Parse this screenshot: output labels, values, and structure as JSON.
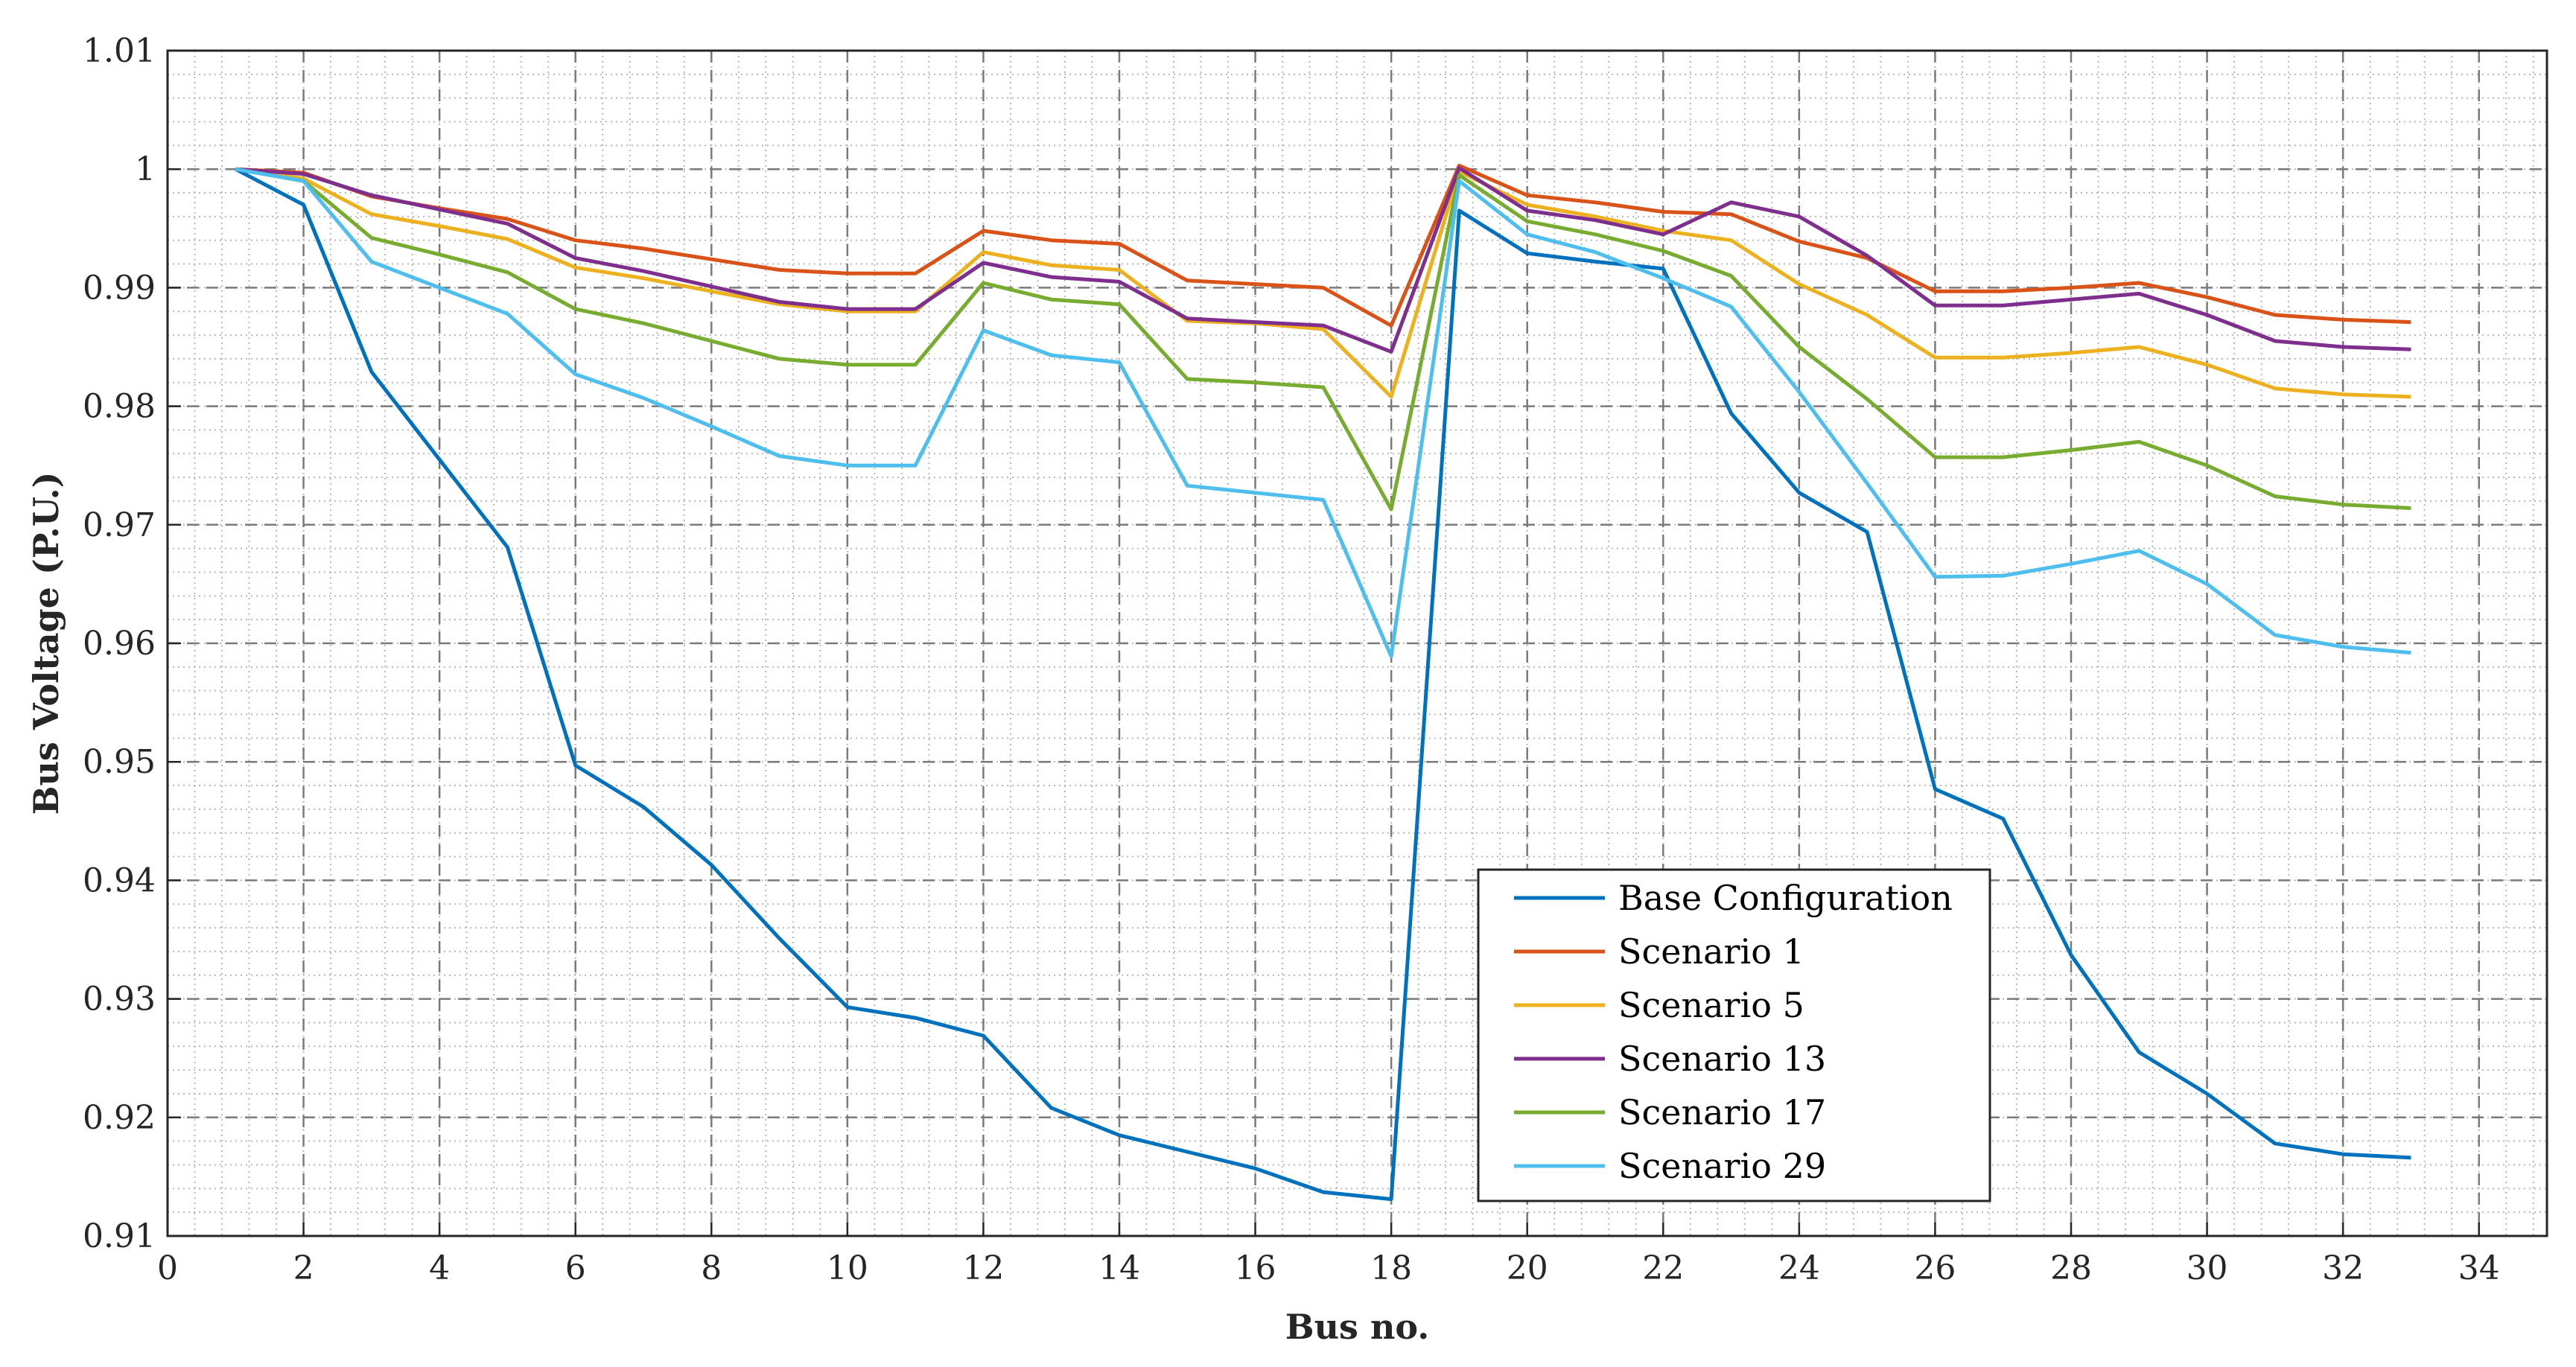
{
  "chart_data": {
    "type": "line",
    "title": "",
    "xlabel": "Bus no.",
    "ylabel": "Bus Voltage (P.U.)",
    "xlim": [
      0,
      35
    ],
    "ylim": [
      0.91,
      1.01
    ],
    "xticks": [
      0,
      2,
      4,
      6,
      8,
      10,
      12,
      14,
      16,
      18,
      20,
      22,
      24,
      26,
      28,
      30,
      32,
      34
    ],
    "xtick_labels": [
      "0",
      "2",
      "4",
      "6",
      "8",
      "10",
      "12",
      "14",
      "16",
      "18",
      "20",
      "22",
      "24",
      "26",
      "28",
      "30",
      "32",
      "34"
    ],
    "yticks": [
      0.91,
      0.92,
      0.93,
      0.94,
      0.95,
      0.96,
      0.97,
      0.98,
      0.99,
      1.0,
      1.01
    ],
    "ytick_labels": [
      "0.91",
      "0.92",
      "0.93",
      "0.94",
      "0.95",
      "0.96",
      "0.97",
      "0.98",
      "0.99",
      "1",
      "1.01"
    ],
    "grid": true,
    "minor_grid": true,
    "legend_position": "bottom-right",
    "x": [
      1,
      2,
      3,
      4,
      5,
      6,
      7,
      8,
      9,
      10,
      11,
      12,
      13,
      14,
      15,
      16,
      17,
      18,
      19,
      20,
      21,
      22,
      23,
      24,
      25,
      26,
      27,
      28,
      29,
      30,
      31,
      32,
      33
    ],
    "series": [
      {
        "name": "Base Configuration",
        "color": "#0072BD",
        "values": [
          1.0,
          0.997,
          0.9829,
          0.9755,
          0.9681,
          0.9497,
          0.9462,
          0.9413,
          0.9351,
          0.9293,
          0.9284,
          0.9269,
          0.9208,
          0.9185,
          0.9171,
          0.9157,
          0.9137,
          0.9131,
          0.9965,
          0.9929,
          0.9922,
          0.9916,
          0.9794,
          0.9727,
          0.9694,
          0.9477,
          0.9452,
          0.9337,
          0.9255,
          0.922,
          0.9178,
          0.9169,
          0.9166
        ]
      },
      {
        "name": "Scenario 1",
        "color": "#D95319",
        "values": [
          1.0,
          0.9997,
          0.9977,
          0.9967,
          0.9958,
          0.994,
          0.9933,
          0.9924,
          0.9915,
          0.9912,
          0.9912,
          0.9948,
          0.994,
          0.9937,
          0.9906,
          0.9903,
          0.99,
          0.9868,
          1.0003,
          0.9978,
          0.9972,
          0.9964,
          0.9962,
          0.9939,
          0.9925,
          0.9897,
          0.9897,
          0.99,
          0.9904,
          0.9892,
          0.9877,
          0.9873,
          0.9871
        ]
      },
      {
        "name": "Scenario 5",
        "color": "#EDB120",
        "values": [
          1.0,
          0.9992,
          0.9962,
          0.9952,
          0.9941,
          0.9917,
          0.9908,
          0.9897,
          0.9886,
          0.988,
          0.988,
          0.993,
          0.9919,
          0.9915,
          0.9872,
          0.987,
          0.9865,
          0.9808,
          0.9998,
          0.997,
          0.996,
          0.9948,
          0.994,
          0.9903,
          0.9877,
          0.9841,
          0.9841,
          0.9845,
          0.985,
          0.9835,
          0.9815,
          0.981,
          0.9808
        ]
      },
      {
        "name": "Scenario 13",
        "color": "#7E2F8E",
        "values": [
          1.0,
          0.9996,
          0.9978,
          0.9966,
          0.9954,
          0.9925,
          0.9914,
          0.9901,
          0.9888,
          0.9882,
          0.9882,
          0.9921,
          0.9909,
          0.9905,
          0.9874,
          0.9871,
          0.9868,
          0.9846,
          1.0001,
          0.9965,
          0.9957,
          0.9945,
          0.9972,
          0.996,
          0.9927,
          0.9885,
          0.9885,
          0.989,
          0.9895,
          0.9877,
          0.9855,
          0.985,
          0.9848
        ]
      },
      {
        "name": "Scenario 17",
        "color": "#77AC30",
        "values": [
          1.0,
          0.999,
          0.9942,
          0.9928,
          0.9913,
          0.9882,
          0.987,
          0.9855,
          0.984,
          0.9835,
          0.9835,
          0.9904,
          0.989,
          0.9886,
          0.9823,
          0.982,
          0.9816,
          0.9713,
          0.9995,
          0.9956,
          0.9945,
          0.9931,
          0.991,
          0.985,
          0.9806,
          0.9757,
          0.9757,
          0.9763,
          0.977,
          0.975,
          0.9724,
          0.9717,
          0.9714
        ]
      },
      {
        "name": "Scenario 29",
        "color": "#4DBEEE",
        "values": [
          1.0,
          0.999,
          0.9922,
          0.99,
          0.9878,
          0.9827,
          0.9807,
          0.9783,
          0.9758,
          0.975,
          0.975,
          0.9864,
          0.9843,
          0.9837,
          0.9733,
          0.9727,
          0.9721,
          0.9589,
          0.999,
          0.9945,
          0.993,
          0.9908,
          0.9884,
          0.9812,
          0.9735,
          0.9656,
          0.9657,
          0.9667,
          0.9678,
          0.965,
          0.9607,
          0.9597,
          0.9592
        ]
      }
    ]
  }
}
